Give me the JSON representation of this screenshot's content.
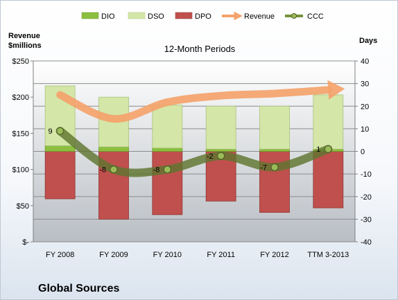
{
  "chart_data": {
    "type": "bar",
    "title": "12-Month Periods",
    "company": "Global Sources",
    "categories": [
      "FY 2008",
      "FY 2009",
      "FY 2010",
      "FY 2011",
      "FY 2012",
      "TTM 3-2013"
    ],
    "left_axis": {
      "label_line1": "Revenue",
      "label_line2": "$millions",
      "ylim": [
        0,
        250
      ],
      "ticks": [
        0,
        50,
        100,
        150,
        200,
        250
      ],
      "tick_labels": [
        "$-",
        "$50",
        "$100",
        "$150",
        "$200",
        "$250"
      ]
    },
    "right_axis": {
      "label": "Days",
      "ylim": [
        -40,
        40
      ],
      "ticks": [
        -40,
        -30,
        -20,
        -10,
        0,
        10,
        20,
        30,
        40
      ],
      "tick_labels": [
        "-40",
        "-30",
        "-20",
        "-10",
        "0",
        "10",
        "20",
        "30",
        "40"
      ]
    },
    "series": [
      {
        "name": "DIO",
        "kind": "bar",
        "color": "#8cbf3f",
        "values": [
          2.5,
          2,
          1.5,
          1,
          1,
          1
        ]
      },
      {
        "name": "DSO",
        "kind": "bar",
        "color": "#d4e6a8",
        "values": [
          26.5,
          22,
          19,
          19,
          19,
          24
        ]
      },
      {
        "name": "DPO",
        "kind": "bar",
        "color": "#c0504d",
        "values": [
          -21,
          -30,
          -28,
          -22,
          -27,
          -25
        ]
      },
      {
        "name": "Revenue",
        "kind": "line",
        "color": "#f79646",
        "values": [
          203,
          170,
          193,
          202,
          205,
          210
        ]
      },
      {
        "name": "CCC",
        "kind": "line",
        "color": "#4f6228",
        "values": [
          9,
          -8,
          -8,
          -2,
          -7,
          1
        ]
      }
    ],
    "ccc_labels": [
      "9",
      "-8",
      "-8",
      "-2",
      "-7",
      "1"
    ],
    "legend_position": "top",
    "grid": true
  }
}
